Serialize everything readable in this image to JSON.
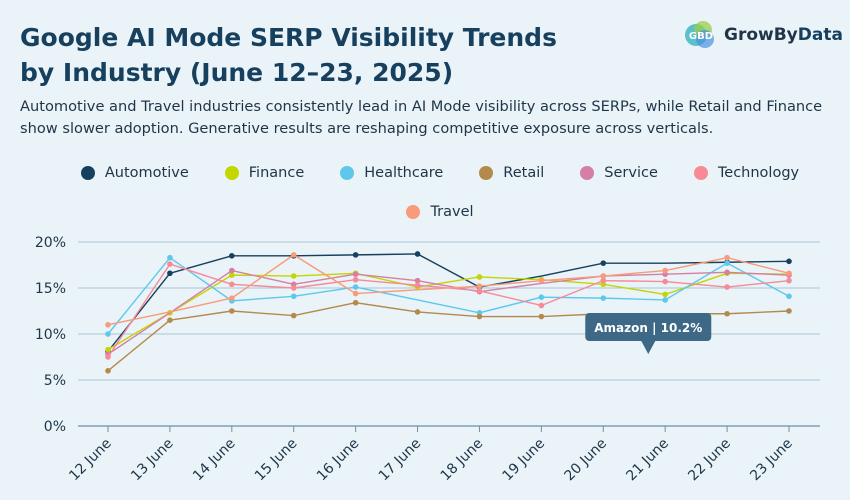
{
  "header": {
    "title_line1": "Google AI Mode SERP Visibility Trends",
    "title_line2": "by Industry (June 12–23, 2025)",
    "subtitle": "Automotive and Travel industries consistently lead in AI Mode visibility across SERPs, while Retail and Finance show slower adoption. Generative results are reshaping competitive exposure across verticals."
  },
  "logo": {
    "part1": "GrowBy",
    "part2": "Data",
    "mark_text": "GBD",
    "colors": {
      "teal": "#3fb6c4",
      "green": "#9acd4a",
      "blue": "#4a90e2"
    }
  },
  "chart_data": {
    "type": "line",
    "title": "Google AI Mode SERP Visibility Trends by Industry (June 12–23, 2025)",
    "xlabel": "",
    "ylabel": "",
    "ylim": [
      0,
      20
    ],
    "y_ticks": [
      0,
      5,
      10,
      15,
      20
    ],
    "y_tick_labels": [
      "0%",
      "5%",
      "10%",
      "15%",
      "20%"
    ],
    "grid": true,
    "legend_position": "top-center",
    "categories": [
      "12 June",
      "13 June",
      "14 June",
      "15 June",
      "16 June",
      "17 June",
      "18 June",
      "19 June",
      "20 June",
      "21 June",
      "22 June",
      "23 June"
    ],
    "series": [
      {
        "name": "Automotive",
        "color": "#17405f",
        "values": [
          8.1,
          16.6,
          18.5,
          18.5,
          18.6,
          18.7,
          15.1,
          16.3,
          17.7,
          17.7,
          17.8,
          17.9
        ],
        "hidden_points": [
          7,
          9
        ]
      },
      {
        "name": "Finance",
        "color": "#c3d600",
        "values": [
          8.3,
          12.3,
          16.4,
          16.3,
          16.6,
          15.1,
          16.2,
          15.9,
          15.4,
          14.3,
          16.6,
          16.5
        ],
        "hidden_points": []
      },
      {
        "name": "Healthcare",
        "color": "#5ec8ec",
        "values": [
          10.0,
          18.3,
          13.6,
          14.1,
          15.1,
          13.7,
          12.3,
          14.0,
          13.9,
          13.7,
          17.7,
          14.1
        ],
        "hidden_points": [
          5
        ]
      },
      {
        "name": "Retail",
        "color": "#b48a4c",
        "values": [
          6.0,
          11.5,
          12.5,
          12.0,
          13.4,
          12.4,
          11.9,
          11.9,
          12.2,
          12.2,
          12.2,
          12.5
        ],
        "hidden_points": [
          8,
          9
        ]
      },
      {
        "name": "Service",
        "color": "#d67fa4",
        "values": [
          7.8,
          12.3,
          16.9,
          15.4,
          16.5,
          15.8,
          14.6,
          15.5,
          16.3,
          16.5,
          16.7,
          16.4
        ],
        "hidden_points": [
          1,
          7
        ]
      },
      {
        "name": "Technology",
        "color": "#f78a95",
        "values": [
          7.5,
          17.6,
          15.4,
          15.0,
          15.9,
          15.3,
          14.7,
          13.1,
          15.8,
          15.7,
          15.1,
          15.8
        ],
        "hidden_points": []
      },
      {
        "name": "Travel",
        "color": "#f99a7a",
        "values": [
          11.0,
          12.4,
          13.9,
          18.6,
          14.4,
          14.8,
          15.2,
          15.8,
          16.3,
          16.9,
          18.3,
          16.6
        ],
        "hidden_points": [
          1,
          5
        ]
      }
    ],
    "annotations": [
      {
        "text": "Amazon | 10.2%",
        "x": "20 June",
        "y": 10.2
      }
    ]
  }
}
